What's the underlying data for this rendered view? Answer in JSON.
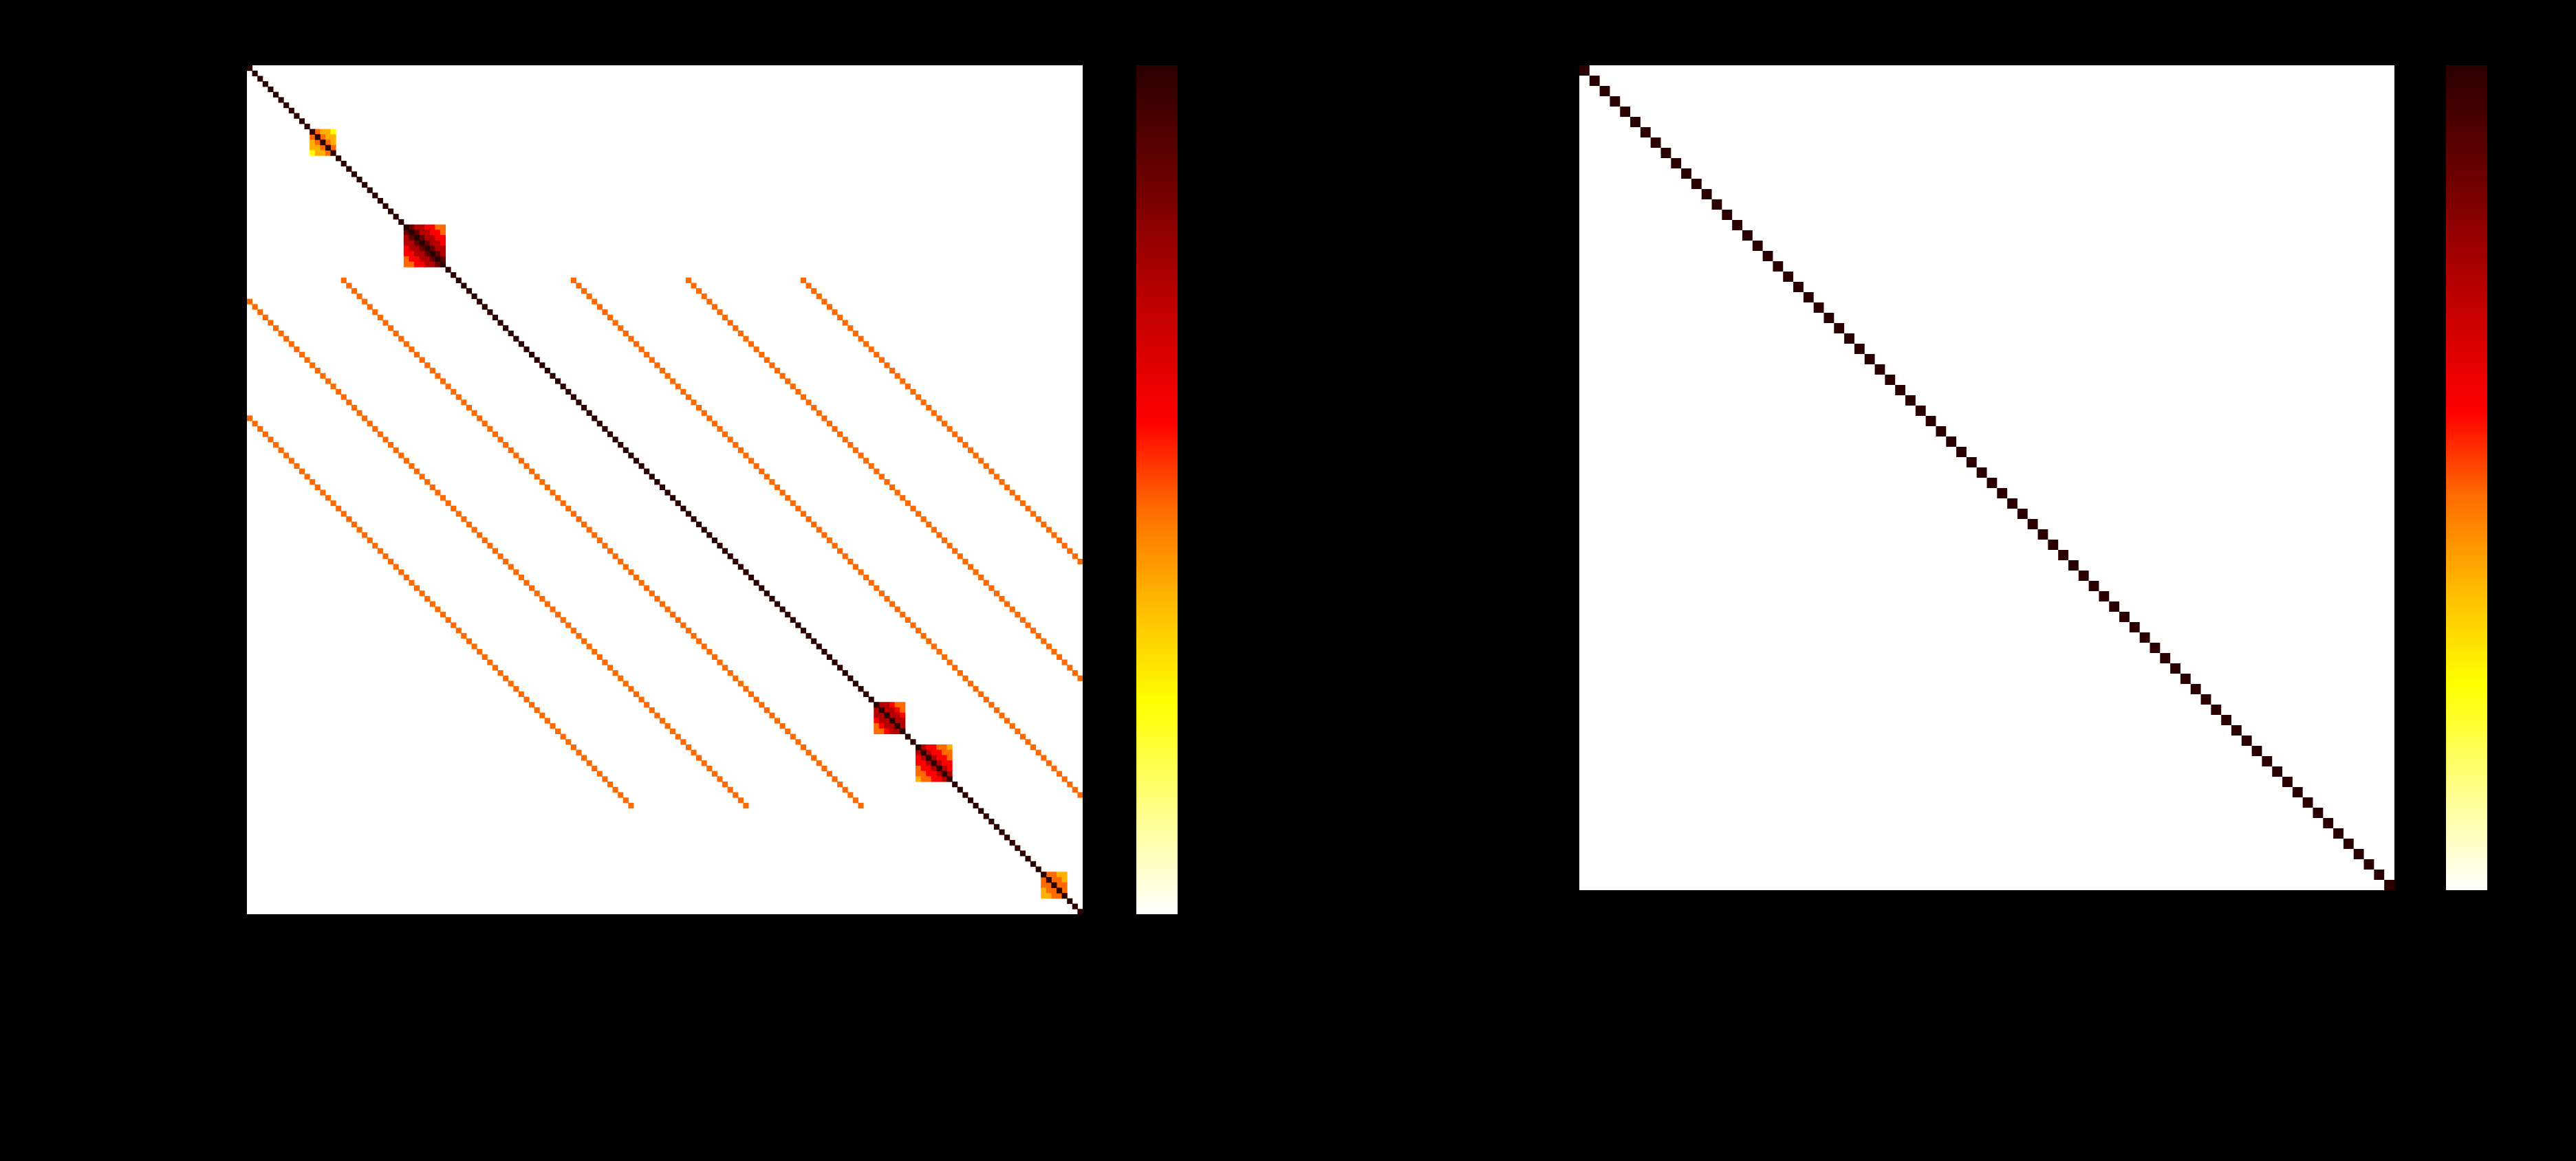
{
  "colors": {
    "background": "#000000",
    "panel": "#ffffff",
    "colormap": [
      "#ffffff",
      "#ffff8c",
      "#ffff00",
      "#ffb000",
      "#ff6a00",
      "#ff0000",
      "#b40000",
      "#640000",
      "#2a0000"
    ]
  },
  "chart_data": [
    {
      "type": "heatmap",
      "title": "",
      "xlabel": "",
      "ylabel": "",
      "colormap": "hot_r",
      "size": 160,
      "diagonal": 1,
      "blocks": [
        {
          "start": 30,
          "end": 37,
          "value": 0.9
        },
        {
          "start": 12,
          "end": 16,
          "value": 0.5
        },
        {
          "start": 120,
          "end": 125,
          "value": 0.85
        },
        {
          "start": 128,
          "end": 134,
          "value": 0.75
        },
        {
          "start": 152,
          "end": 156,
          "value": 0.6
        }
      ],
      "offdiagonals": [
        {
          "offset": 22,
          "from": 40,
          "to": 140,
          "value": 0.55
        },
        {
          "offset": -22,
          "from": 40,
          "to": 140,
          "value": 0.55
        },
        {
          "offset": 44,
          "from": 40,
          "to": 140,
          "value": 0.5
        },
        {
          "offset": -44,
          "from": 40,
          "to": 140,
          "value": 0.5
        },
        {
          "offset": 66,
          "from": 40,
          "to": 140,
          "value": 0.45
        },
        {
          "offset": -66,
          "from": 40,
          "to": 140,
          "value": 0.45
        }
      ],
      "colorbar": true
    },
    {
      "type": "heatmap",
      "title": "",
      "xlabel": "",
      "ylabel": "",
      "colormap": "hot_r",
      "size": 80,
      "diagonal": 1,
      "offdiagonal": 0,
      "colorbar": true
    }
  ]
}
